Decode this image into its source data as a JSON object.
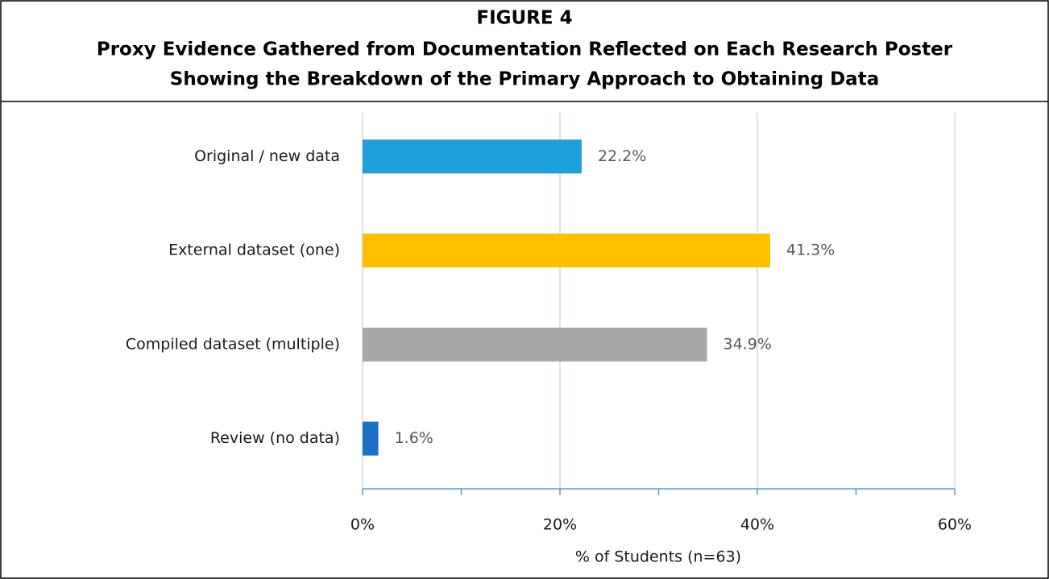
{
  "chart_data": {
    "type": "hbar",
    "label": "FIGURE 4",
    "title": [
      "Proxy Evidence Gathered from Documentation Reflected on Each Research Poster",
      "Showing the Breakdown of the Primary Approach to Obtaining Data"
    ],
    "categories": [
      "Original / new data",
      "External dataset (one)",
      "Compiled dataset (multiple)",
      "Review (no data)"
    ],
    "values": [
      22.2,
      41.3,
      34.9,
      1.6
    ],
    "value_labels": [
      "22.2%",
      "41.3%",
      "34.9%",
      "1.6%"
    ],
    "colors": [
      "#1f9fdc",
      "#ffc000",
      "#a6a6a6",
      "#1f6fc8"
    ],
    "xlim": [
      0,
      60
    ],
    "xticks": [
      {
        "value": 0,
        "label": "0%"
      },
      {
        "value": 20,
        "label": "20%"
      },
      {
        "value": 40,
        "label": "40%"
      },
      {
        "value": 60,
        "label": "60%"
      }
    ],
    "xminorticks": [
      10,
      30,
      50
    ],
    "xlabel": "% of Students (n=63)",
    "grid": true
  }
}
